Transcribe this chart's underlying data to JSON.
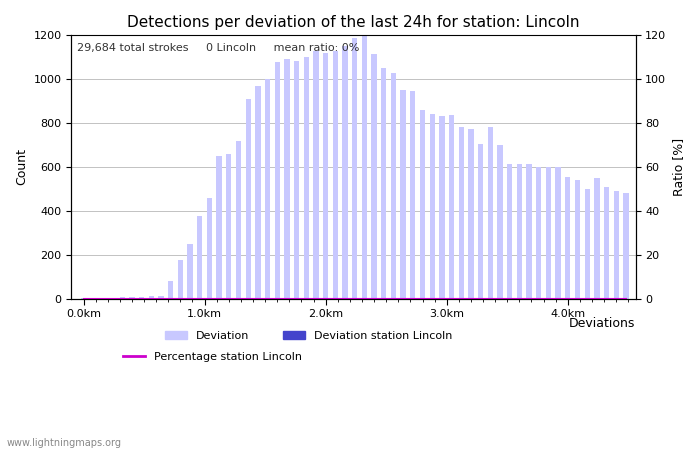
{
  "title": "Detections per deviation of the last 24h for station: Lincoln",
  "xlabel": "Deviations",
  "ylabel_left": "Count",
  "ylabel_right": "Ratio [%]",
  "annotation": "29,684 total strokes     0 Lincoln     mean ratio: 0%",
  "watermark": "www.lightningmaps.org",
  "ylim_left": [
    0,
    1200
  ],
  "ylim_right": [
    0,
    120
  ],
  "yticks_left": [
    0,
    200,
    400,
    600,
    800,
    1000,
    1200
  ],
  "yticks_right": [
    0,
    20,
    40,
    60,
    80,
    100,
    120
  ],
  "bar_color": "#c8c8ff",
  "bar_edge_color": "#b0b0ee",
  "bar_station_color": "#4444cc",
  "line_color": "#cc00cc",
  "bg_color": "#ffffff",
  "grid_color": "#aaaaaa",
  "title_fontsize": 11,
  "label_fontsize": 9,
  "tick_fontsize": 8,
  "legend_fontsize": 8,
  "counts": [
    2,
    0,
    3,
    3,
    5,
    5,
    8,
    10,
    12,
    80,
    175,
    250,
    375,
    460,
    650,
    660,
    720,
    910,
    970,
    1000,
    1080,
    1090,
    1085,
    1100,
    1130,
    1120,
    1130,
    1150,
    1190,
    1200,
    1115,
    1050,
    1030,
    950,
    945,
    860,
    840,
    830,
    835,
    780,
    775,
    705,
    780,
    700,
    615,
    615,
    615,
    600,
    600,
    600,
    555,
    540,
    500,
    550,
    510,
    490,
    480
  ],
  "station_counts": [
    0,
    0,
    0,
    0,
    0,
    0,
    0,
    0,
    0,
    0,
    0,
    0,
    0,
    0,
    0,
    0,
    0,
    0,
    0,
    0,
    0,
    0,
    0,
    0,
    0,
    0,
    0,
    0,
    0,
    0,
    0,
    0,
    0,
    0,
    0,
    0,
    0,
    0,
    0,
    0,
    0,
    0,
    0,
    0,
    0,
    0,
    0,
    0,
    0,
    0,
    0,
    0,
    0,
    0,
    0,
    0,
    0
  ],
  "percentage": [
    0,
    0,
    0,
    0,
    0,
    0,
    0,
    0,
    0,
    0,
    0,
    0,
    0,
    0,
    0,
    0,
    0,
    0,
    0,
    0,
    0,
    0,
    0,
    0,
    0,
    0,
    0,
    0,
    0,
    0,
    0,
    0,
    0,
    0,
    0,
    0,
    0,
    0,
    0,
    0,
    0,
    0,
    0,
    0,
    0,
    0,
    0,
    0,
    0,
    0,
    0,
    0,
    0,
    0,
    0,
    0,
    0
  ],
  "km_per_bar": 0.08,
  "xtick_km": [
    0.0,
    1.0,
    2.0,
    3.0,
    4.0
  ],
  "xtick_labels": [
    "0.0km",
    "1.0km",
    "2.0km",
    "3.0km",
    "4.0km"
  ]
}
